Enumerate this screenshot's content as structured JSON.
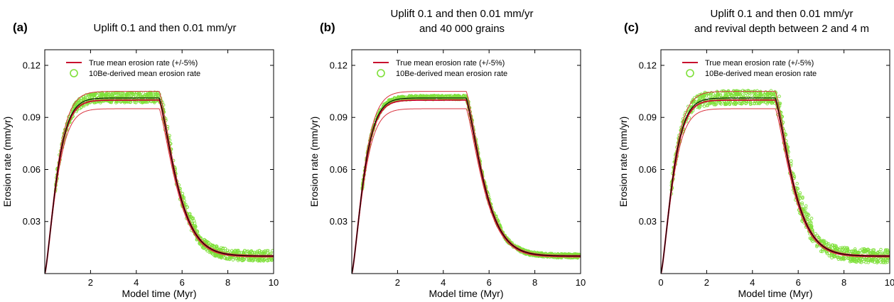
{
  "colors": {
    "true_rate": "#c8102e",
    "bounds": "#d9323e",
    "derived": "#7fe03a",
    "median": "#000000"
  },
  "chart_data": [
    {
      "type": "line",
      "panel_label": "(a)",
      "title_lines": [
        "Uplift 0.1 and then 0.01 mm/yr"
      ],
      "xlabel": "Model time (Myr)",
      "ylabel": "Erosion rate (mm/yr)",
      "xlim": [
        0,
        10
      ],
      "ylim": [
        0,
        0.129
      ],
      "xticks": [
        2,
        4,
        6,
        8,
        10
      ],
      "yticks": [
        0.03,
        0.06,
        0.09,
        0.12
      ],
      "grid": false,
      "legend_position": "top-left",
      "legend": [
        "True mean erosion rate (+/-5%)",
        "10Be-derived mean erosion rate"
      ],
      "uplift_rates": [
        0.1,
        0.01
      ],
      "uplift_switch_time": 5,
      "scatter_spread": 0.003
    },
    {
      "type": "line",
      "panel_label": "(b)",
      "title_lines": [
        "Uplift 0.1 and then 0.01 mm/yr",
        "and 40 000 grains"
      ],
      "xlabel": "Model time (Myr)",
      "ylabel": "Erosion rate (mm/yr)",
      "xlim": [
        0,
        10
      ],
      "ylim": [
        0,
        0.129
      ],
      "xticks": [
        2,
        4,
        6,
        8,
        10
      ],
      "yticks": [
        0.03,
        0.06,
        0.09,
        0.12
      ],
      "grid": false,
      "legend_position": "top-left",
      "legend": [
        "True mean erosion rate (+/-5%)",
        "10Be-derived mean erosion rate"
      ],
      "uplift_rates": [
        0.1,
        0.01
      ],
      "uplift_switch_time": 5,
      "scatter_spread": 0.0012
    },
    {
      "type": "line",
      "panel_label": "(c)",
      "title_lines": [
        "Uplift 0.1 and then 0.01 mm/yr",
        "and revival depth between 2 and 4 m"
      ],
      "xlabel": "Model time (Myr)",
      "ylabel": "Erosion rate (mm/yr)",
      "xlim": [
        0,
        10
      ],
      "ylim": [
        0,
        0.129
      ],
      "xticks": [
        0,
        2,
        4,
        6,
        8,
        10
      ],
      "yticks": [
        0.03,
        0.06,
        0.09,
        0.12
      ],
      "grid": false,
      "legend_position": "top-left",
      "legend": [
        "True mean erosion rate (+/-5%)",
        "10Be-derived mean erosion rate"
      ],
      "uplift_rates": [
        0.1,
        0.01
      ],
      "uplift_switch_time": 5,
      "scatter_spread": 0.004
    }
  ]
}
